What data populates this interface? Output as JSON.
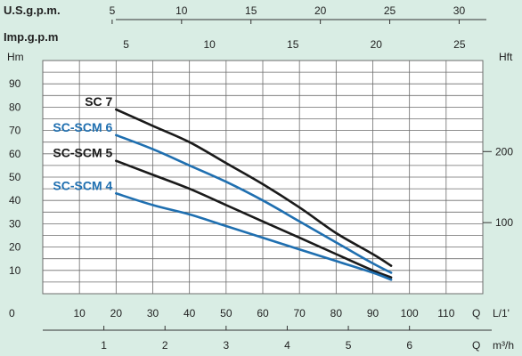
{
  "chart_data": {
    "type": "line",
    "x_axis": {
      "label": "L/1'",
      "unit_letter": "Q",
      "ticks": [
        10,
        20,
        30,
        40,
        50,
        60,
        70,
        80,
        90,
        100,
        110
      ],
      "range": [
        0,
        120
      ]
    },
    "y_axis_left": {
      "label": "Hm",
      "ticks": [
        10,
        20,
        30,
        40,
        50,
        60,
        70,
        80,
        90
      ],
      "range": [
        0,
        100
      ]
    },
    "y_axis_right": {
      "label": "Hft",
      "ticks": [
        100,
        200
      ]
    },
    "top_axis_us": {
      "label": "U.S.g.p.m.",
      "ticks": [
        5,
        10,
        15,
        20,
        25,
        30
      ]
    },
    "top_axis_imp": {
      "label": "Imp.g.p.m",
      "ticks": [
        5,
        10,
        15,
        20,
        25
      ]
    },
    "bottom_axis_m3h": {
      "unit_letter": "Q",
      "label": "m³/h",
      "ticks": [
        1,
        2,
        3,
        4,
        5,
        6
      ]
    },
    "zero_label": "0",
    "series": [
      {
        "name": "SC 7",
        "color": "#1a1a1a",
        "x": [
          20,
          30,
          40,
          50,
          60,
          70,
          80,
          90,
          95
        ],
        "y": [
          79,
          72,
          65,
          56,
          47,
          37,
          26,
          17,
          12
        ]
      },
      {
        "name": "SC-SCM 6",
        "color": "#1f6fb0",
        "x": [
          20,
          30,
          40,
          50,
          60,
          70,
          80,
          90,
          95
        ],
        "y": [
          68,
          62,
          55,
          48,
          40,
          31,
          22,
          13,
          9
        ]
      },
      {
        "name": "SC-SCM 5",
        "color": "#1a1a1a",
        "x": [
          20,
          30,
          40,
          50,
          60,
          70,
          80,
          90,
          95
        ],
        "y": [
          57,
          51,
          45,
          38,
          31,
          24,
          17,
          10,
          7
        ]
      },
      {
        "name": "SC-SCM 4",
        "color": "#1f6fb0",
        "x": [
          20,
          30,
          40,
          50,
          60,
          70,
          80,
          90,
          95
        ],
        "y": [
          43,
          38,
          34,
          29,
          24,
          19,
          14,
          9,
          6
        ]
      }
    ],
    "grid": true
  }
}
